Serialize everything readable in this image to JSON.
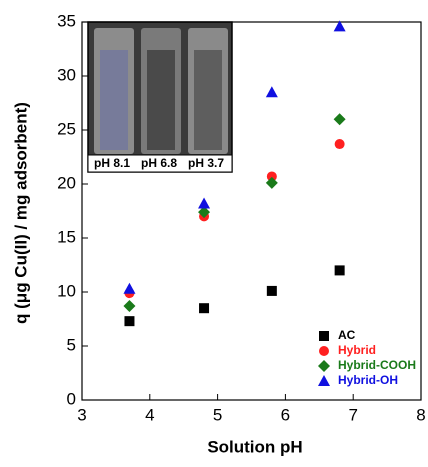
{
  "chart_data": {
    "type": "scatter",
    "xlabel": "Solution pH",
    "ylabel": "q (μg Cu(II) / mg adsorbent)",
    "xlim": [
      3,
      8
    ],
    "xticks": [
      3,
      4,
      5,
      6,
      7,
      8
    ],
    "ylim": [
      0,
      35
    ],
    "yticks": [
      0,
      5,
      10,
      15,
      20,
      25,
      30,
      35
    ],
    "legend": "lower right",
    "inset_labels": [
      "pH 8.1",
      "pH 6.8",
      "pH 3.7"
    ],
    "series": [
      {
        "name": "AC",
        "color": "#000000",
        "marker": "square",
        "x": [
          3.7,
          4.8,
          5.8,
          6.8
        ],
        "values": [
          7.3,
          8.5,
          10.1,
          12.0
        ]
      },
      {
        "name": "Hybrid",
        "color": "#ff2020",
        "marker": "circle",
        "x": [
          3.7,
          4.8,
          5.8,
          6.8
        ],
        "values": [
          9.9,
          17.0,
          20.7,
          23.7
        ]
      },
      {
        "name": "Hybrid-COOH",
        "color": "#1a7a1a",
        "marker": "diamond",
        "x": [
          3.7,
          4.8,
          5.8,
          6.8
        ],
        "values": [
          8.7,
          17.4,
          20.1,
          26.0
        ]
      },
      {
        "name": "Hybrid-OH",
        "color": "#1010e0",
        "marker": "triangle",
        "x": [
          3.7,
          4.8,
          5.8,
          6.8
        ],
        "values": [
          10.3,
          18.2,
          28.5,
          34.6
        ]
      }
    ]
  }
}
